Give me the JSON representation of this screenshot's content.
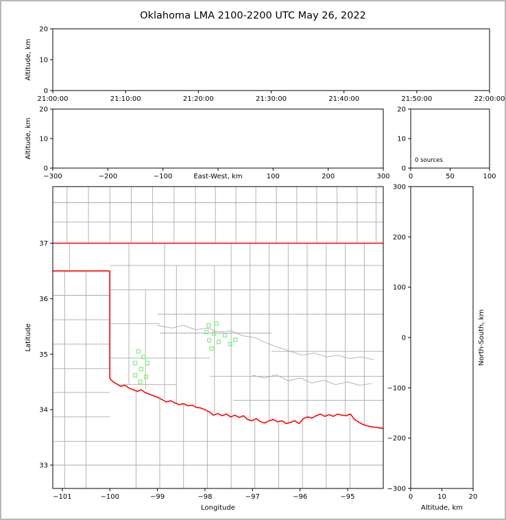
{
  "title": "Oklahoma LMA 2100-2200 UTC May 26, 2022",
  "colors": {
    "axis": "#000000",
    "county_line": "#aaaaaa",
    "state_border": "#ff0000",
    "station_marker": "#90ee90",
    "background": "#ffffff"
  },
  "chart_data": [
    {
      "id": "time_height",
      "type": "scatter",
      "xlabel": "",
      "ylabel": "Altitude, km",
      "xlim": [
        0,
        6
      ],
      "xtick_values": [
        0,
        1,
        2,
        3,
        4,
        5,
        6
      ],
      "xtick_labels": [
        "21:00:00",
        "21:10:00",
        "21:20:00",
        "21:30:00",
        "21:40:00",
        "21:50:00",
        "22:00:00"
      ],
      "ylim": [
        0,
        20
      ],
      "ytick_values": [
        0,
        10,
        20
      ],
      "points": []
    },
    {
      "id": "ew_height",
      "type": "scatter",
      "xlabel": "East-West, km",
      "xlabel_inline": true,
      "ylabel": "Altitude, km",
      "xlim": [
        -300,
        300
      ],
      "xtick_values": [
        -300,
        -200,
        -100,
        0,
        100,
        200,
        300
      ],
      "ylim": [
        0,
        20
      ],
      "ytick_values": [
        0,
        10,
        20
      ],
      "points": []
    },
    {
      "id": "alt_histogram",
      "type": "line",
      "xlabel": "",
      "ylabel": "",
      "xlim": [
        0,
        100
      ],
      "xtick_values": [
        0,
        50,
        100
      ],
      "ylim": [
        0,
        20
      ],
      "ytick_values": [
        0,
        10,
        20
      ],
      "annotation": "0 sources",
      "points": []
    },
    {
      "id": "plan_view",
      "type": "scatter",
      "xlabel": "Longitude",
      "ylabel": "Latitude",
      "xlim": [
        -101.2,
        -94.25
      ],
      "xtick_values": [
        -101,
        -100,
        -99,
        -98,
        -97,
        -96,
        -95
      ],
      "ylim": [
        32.58,
        38.02
      ],
      "ytick_values": [
        33,
        34,
        35,
        36,
        37
      ],
      "stations": [
        [
          -99.4,
          35.05
        ],
        [
          -99.29,
          34.95
        ],
        [
          -99.47,
          34.84
        ],
        [
          -99.21,
          34.84
        ],
        [
          -99.34,
          34.73
        ],
        [
          -99.47,
          34.62
        ],
        [
          -99.24,
          34.59
        ],
        [
          -99.36,
          34.5
        ],
        [
          -97.92,
          35.52
        ],
        [
          -97.76,
          35.55
        ],
        [
          -97.97,
          35.4
        ],
        [
          -97.81,
          35.37
        ],
        [
          -97.58,
          35.34
        ],
        [
          -97.91,
          35.25
        ],
        [
          -97.71,
          35.22
        ],
        [
          -97.47,
          35.18
        ],
        [
          -97.86,
          35.1
        ],
        [
          -97.36,
          35.26
        ]
      ],
      "state_border": [
        [
          [
            -101.2,
            37.0
          ],
          [
            -94.25,
            37.0
          ]
        ],
        [
          [
            -101.2,
            36.5
          ],
          [
            -100.0,
            36.5
          ]
        ],
        [
          [
            -100.0,
            36.5
          ],
          [
            -100.0,
            34.56
          ]
        ],
        [
          [
            -100.0,
            34.56
          ],
          [
            -99.93,
            34.5
          ],
          [
            -99.85,
            34.46
          ],
          [
            -99.77,
            34.42
          ],
          [
            -99.68,
            34.44
          ],
          [
            -99.6,
            34.39
          ],
          [
            -99.51,
            34.36
          ],
          [
            -99.42,
            34.33
          ],
          [
            -99.34,
            34.36
          ],
          [
            -99.26,
            34.31
          ],
          [
            -99.17,
            34.28
          ],
          [
            -99.08,
            34.25
          ],
          [
            -98.99,
            34.22
          ],
          [
            -98.9,
            34.18
          ],
          [
            -98.81,
            34.14
          ],
          [
            -98.72,
            34.16
          ],
          [
            -98.63,
            34.12
          ],
          [
            -98.54,
            34.09
          ],
          [
            -98.45,
            34.11
          ],
          [
            -98.36,
            34.07
          ],
          [
            -98.27,
            34.08
          ],
          [
            -98.18,
            34.04
          ],
          [
            -98.09,
            34.03
          ],
          [
            -98.0,
            34.0
          ],
          [
            -97.91,
            33.96
          ],
          [
            -97.82,
            33.9
          ],
          [
            -97.73,
            33.93
          ],
          [
            -97.64,
            33.89
          ],
          [
            -97.55,
            33.92
          ],
          [
            -97.46,
            33.87
          ],
          [
            -97.37,
            33.9
          ],
          [
            -97.28,
            33.86
          ],
          [
            -97.19,
            33.89
          ],
          [
            -97.1,
            33.82
          ],
          [
            -97.01,
            33.8
          ],
          [
            -96.92,
            33.84
          ],
          [
            -96.83,
            33.78
          ],
          [
            -96.74,
            33.76
          ],
          [
            -96.65,
            33.8
          ],
          [
            -96.56,
            33.82
          ],
          [
            -96.47,
            33.78
          ],
          [
            -96.38,
            33.8
          ],
          [
            -96.29,
            33.75
          ],
          [
            -96.2,
            33.77
          ],
          [
            -96.11,
            33.8
          ],
          [
            -96.02,
            33.75
          ],
          [
            -95.93,
            33.84
          ],
          [
            -95.84,
            33.87
          ],
          [
            -95.75,
            33.85
          ],
          [
            -95.66,
            33.89
          ],
          [
            -95.57,
            33.92
          ],
          [
            -95.48,
            33.88
          ],
          [
            -95.39,
            33.91
          ],
          [
            -95.3,
            33.88
          ],
          [
            -95.21,
            33.92
          ],
          [
            -95.12,
            33.9
          ],
          [
            -95.03,
            33.89
          ],
          [
            -94.94,
            33.92
          ],
          [
            -94.85,
            33.82
          ],
          [
            -94.76,
            33.77
          ],
          [
            -94.67,
            33.73
          ],
          [
            -94.55,
            33.7
          ],
          [
            -94.25,
            33.66
          ]
        ]
      ],
      "county_lines": [
        [
          [
            -100.9,
            37.0
          ],
          [
            -100.9,
            38.02
          ]
        ],
        [
          [
            -100.45,
            37.0
          ],
          [
            -100.45,
            38.02
          ]
        ],
        [
          [
            -100.0,
            37.0
          ],
          [
            -100.0,
            38.02
          ]
        ],
        [
          [
            -99.55,
            37.0
          ],
          [
            -99.55,
            38.02
          ]
        ],
        [
          [
            -99.1,
            37.0
          ],
          [
            -99.1,
            38.02
          ]
        ],
        [
          [
            -98.65,
            37.0
          ],
          [
            -98.65,
            38.02
          ]
        ],
        [
          [
            -98.2,
            37.0
          ],
          [
            -98.2,
            38.02
          ]
        ],
        [
          [
            -97.78,
            37.0
          ],
          [
            -97.78,
            38.02
          ]
        ],
        [
          [
            -97.35,
            37.0
          ],
          [
            -97.35,
            38.02
          ]
        ],
        [
          [
            -96.93,
            37.0
          ],
          [
            -96.93,
            38.02
          ]
        ],
        [
          [
            -96.5,
            37.0
          ],
          [
            -96.5,
            38.02
          ]
        ],
        [
          [
            -96.07,
            37.0
          ],
          [
            -96.07,
            38.02
          ]
        ],
        [
          [
            -95.65,
            37.0
          ],
          [
            -95.65,
            38.02
          ]
        ],
        [
          [
            -95.22,
            37.0
          ],
          [
            -95.22,
            38.02
          ]
        ],
        [
          [
            -94.8,
            37.0
          ],
          [
            -94.8,
            38.02
          ]
        ],
        [
          [
            -94.4,
            37.0
          ],
          [
            -94.4,
            38.02
          ]
        ],
        [
          [
            -101.2,
            37.73
          ],
          [
            -94.25,
            37.73
          ]
        ],
        [
          [
            -101.2,
            37.38
          ],
          [
            -94.25,
            37.38
          ]
        ],
        [
          [
            -100.95,
            32.58
          ],
          [
            -100.95,
            36.5
          ]
        ],
        [
          [
            -100.5,
            32.58
          ],
          [
            -100.5,
            36.5
          ]
        ],
        [
          [
            -100.85,
            36.5
          ],
          [
            -100.85,
            37.0
          ]
        ],
        [
          [
            -101.2,
            36.06
          ],
          [
            -100.0,
            36.06
          ]
        ],
        [
          [
            -101.2,
            35.62
          ],
          [
            -100.0,
            35.62
          ]
        ],
        [
          [
            -101.2,
            35.18
          ],
          [
            -100.0,
            35.18
          ]
        ],
        [
          [
            -101.2,
            34.74
          ],
          [
            -100.0,
            34.74
          ]
        ],
        [
          [
            -101.2,
            34.31
          ],
          [
            -100.0,
            34.31
          ]
        ],
        [
          [
            -101.2,
            33.87
          ],
          [
            -100.0,
            33.87
          ]
        ],
        [
          [
            -101.2,
            33.43
          ],
          [
            -94.25,
            33.43
          ]
        ],
        [
          [
            -101.2,
            33.0
          ],
          [
            -94.25,
            33.0
          ]
        ],
        [
          [
            -99.6,
            34.45
          ],
          [
            -99.6,
            37.0
          ]
        ],
        [
          [
            -99.25,
            34.37
          ],
          [
            -99.25,
            36.16
          ]
        ],
        [
          [
            -98.85,
            34.2
          ],
          [
            -98.85,
            37.0
          ]
        ],
        [
          [
            -98.6,
            34.1
          ],
          [
            -98.6,
            36.6
          ]
        ],
        [
          [
            -98.2,
            34.06
          ],
          [
            -98.2,
            37.0
          ]
        ],
        [
          [
            -97.8,
            33.95
          ],
          [
            -97.8,
            36.6
          ]
        ],
        [
          [
            -97.45,
            33.9
          ],
          [
            -97.45,
            37.0
          ]
        ],
        [
          [
            -97.05,
            33.82
          ],
          [
            -97.05,
            37.0
          ]
        ],
        [
          [
            -96.65,
            33.8
          ],
          [
            -96.65,
            37.0
          ]
        ],
        [
          [
            -96.25,
            33.76
          ],
          [
            -96.25,
            37.0
          ]
        ],
        [
          [
            -95.85,
            33.86
          ],
          [
            -95.85,
            37.0
          ]
        ],
        [
          [
            -95.45,
            33.9
          ],
          [
            -95.45,
            37.0
          ]
        ],
        [
          [
            -95.05,
            33.9
          ],
          [
            -95.05,
            37.0
          ]
        ],
        [
          [
            -94.65,
            33.7
          ],
          [
            -94.65,
            37.0
          ]
        ],
        [
          [
            -100.0,
            36.6
          ],
          [
            -94.25,
            36.6
          ]
        ],
        [
          [
            -100.0,
            36.16
          ],
          [
            -94.25,
            36.16
          ]
        ],
        [
          [
            -99.0,
            35.72
          ],
          [
            -94.25,
            35.72
          ]
        ],
        [
          [
            -100.0,
            35.55
          ],
          [
            -98.95,
            35.55
          ]
        ],
        [
          [
            -98.95,
            35.38
          ],
          [
            -96.6,
            35.38
          ]
        ],
        [
          [
            -96.6,
            35.05
          ],
          [
            -94.25,
            35.05
          ]
        ],
        [
          [
            -100.0,
            34.93
          ],
          [
            -97.9,
            34.93
          ]
        ],
        [
          [
            -97.9,
            34.6
          ],
          [
            -94.25,
            34.6
          ]
        ],
        [
          [
            -99.8,
            34.45
          ],
          [
            -98.6,
            34.45
          ]
        ],
        [
          [
            -97.4,
            34.17
          ],
          [
            -94.25,
            34.17
          ]
        ],
        [
          [
            -99.45,
            32.58
          ],
          [
            -99.45,
            34.34
          ]
        ],
        [
          [
            -98.95,
            32.58
          ],
          [
            -98.95,
            34.21
          ]
        ],
        [
          [
            -98.45,
            32.58
          ],
          [
            -98.45,
            34.1
          ]
        ],
        [
          [
            -97.95,
            32.58
          ],
          [
            -97.95,
            33.99
          ]
        ],
        [
          [
            -97.45,
            32.58
          ],
          [
            -97.45,
            33.89
          ]
        ],
        [
          [
            -96.95,
            32.58
          ],
          [
            -96.95,
            33.82
          ]
        ],
        [
          [
            -96.45,
            32.58
          ],
          [
            -96.45,
            33.79
          ]
        ],
        [
          [
            -95.95,
            32.58
          ],
          [
            -95.95,
            33.84
          ]
        ],
        [
          [
            -95.45,
            32.58
          ],
          [
            -95.45,
            33.9
          ]
        ],
        [
          [
            -94.95,
            32.58
          ],
          [
            -94.95,
            33.87
          ]
        ],
        [
          [
            -99.0,
            35.52
          ],
          [
            -98.7,
            35.47
          ],
          [
            -98.45,
            35.52
          ],
          [
            -98.2,
            35.44
          ],
          [
            -97.95,
            35.47
          ],
          [
            -97.7,
            35.4
          ],
          [
            -97.45,
            35.42
          ],
          [
            -97.2,
            35.33
          ],
          [
            -96.95,
            35.3
          ],
          [
            -96.7,
            35.2
          ],
          [
            -96.45,
            35.12
          ],
          [
            -96.2,
            35.05
          ],
          [
            -95.95,
            34.98
          ],
          [
            -95.7,
            35.02
          ],
          [
            -95.45,
            34.95
          ],
          [
            -95.2,
            34.98
          ],
          [
            -94.95,
            34.92
          ],
          [
            -94.7,
            34.95
          ],
          [
            -94.45,
            34.9
          ]
        ],
        [
          [
            -97.0,
            34.62
          ],
          [
            -96.75,
            34.57
          ],
          [
            -96.5,
            34.63
          ],
          [
            -96.25,
            34.52
          ],
          [
            -96.0,
            34.57
          ],
          [
            -95.75,
            34.48
          ],
          [
            -95.5,
            34.53
          ],
          [
            -95.25,
            34.45
          ],
          [
            -95.0,
            34.5
          ],
          [
            -94.75,
            34.44
          ],
          [
            -94.5,
            34.47
          ]
        ]
      ]
    },
    {
      "id": "ns_height",
      "type": "scatter",
      "xlabel": "Altitude, km",
      "ylabel": "North-South, km",
      "ylabel_side": "right",
      "xlim": [
        0,
        20
      ],
      "xtick_values": [
        0,
        10,
        20
      ],
      "ylim": [
        -300,
        300
      ],
      "ytick_values": [
        -300,
        -200,
        -100,
        0,
        100,
        200,
        300
      ],
      "points": []
    }
  ]
}
